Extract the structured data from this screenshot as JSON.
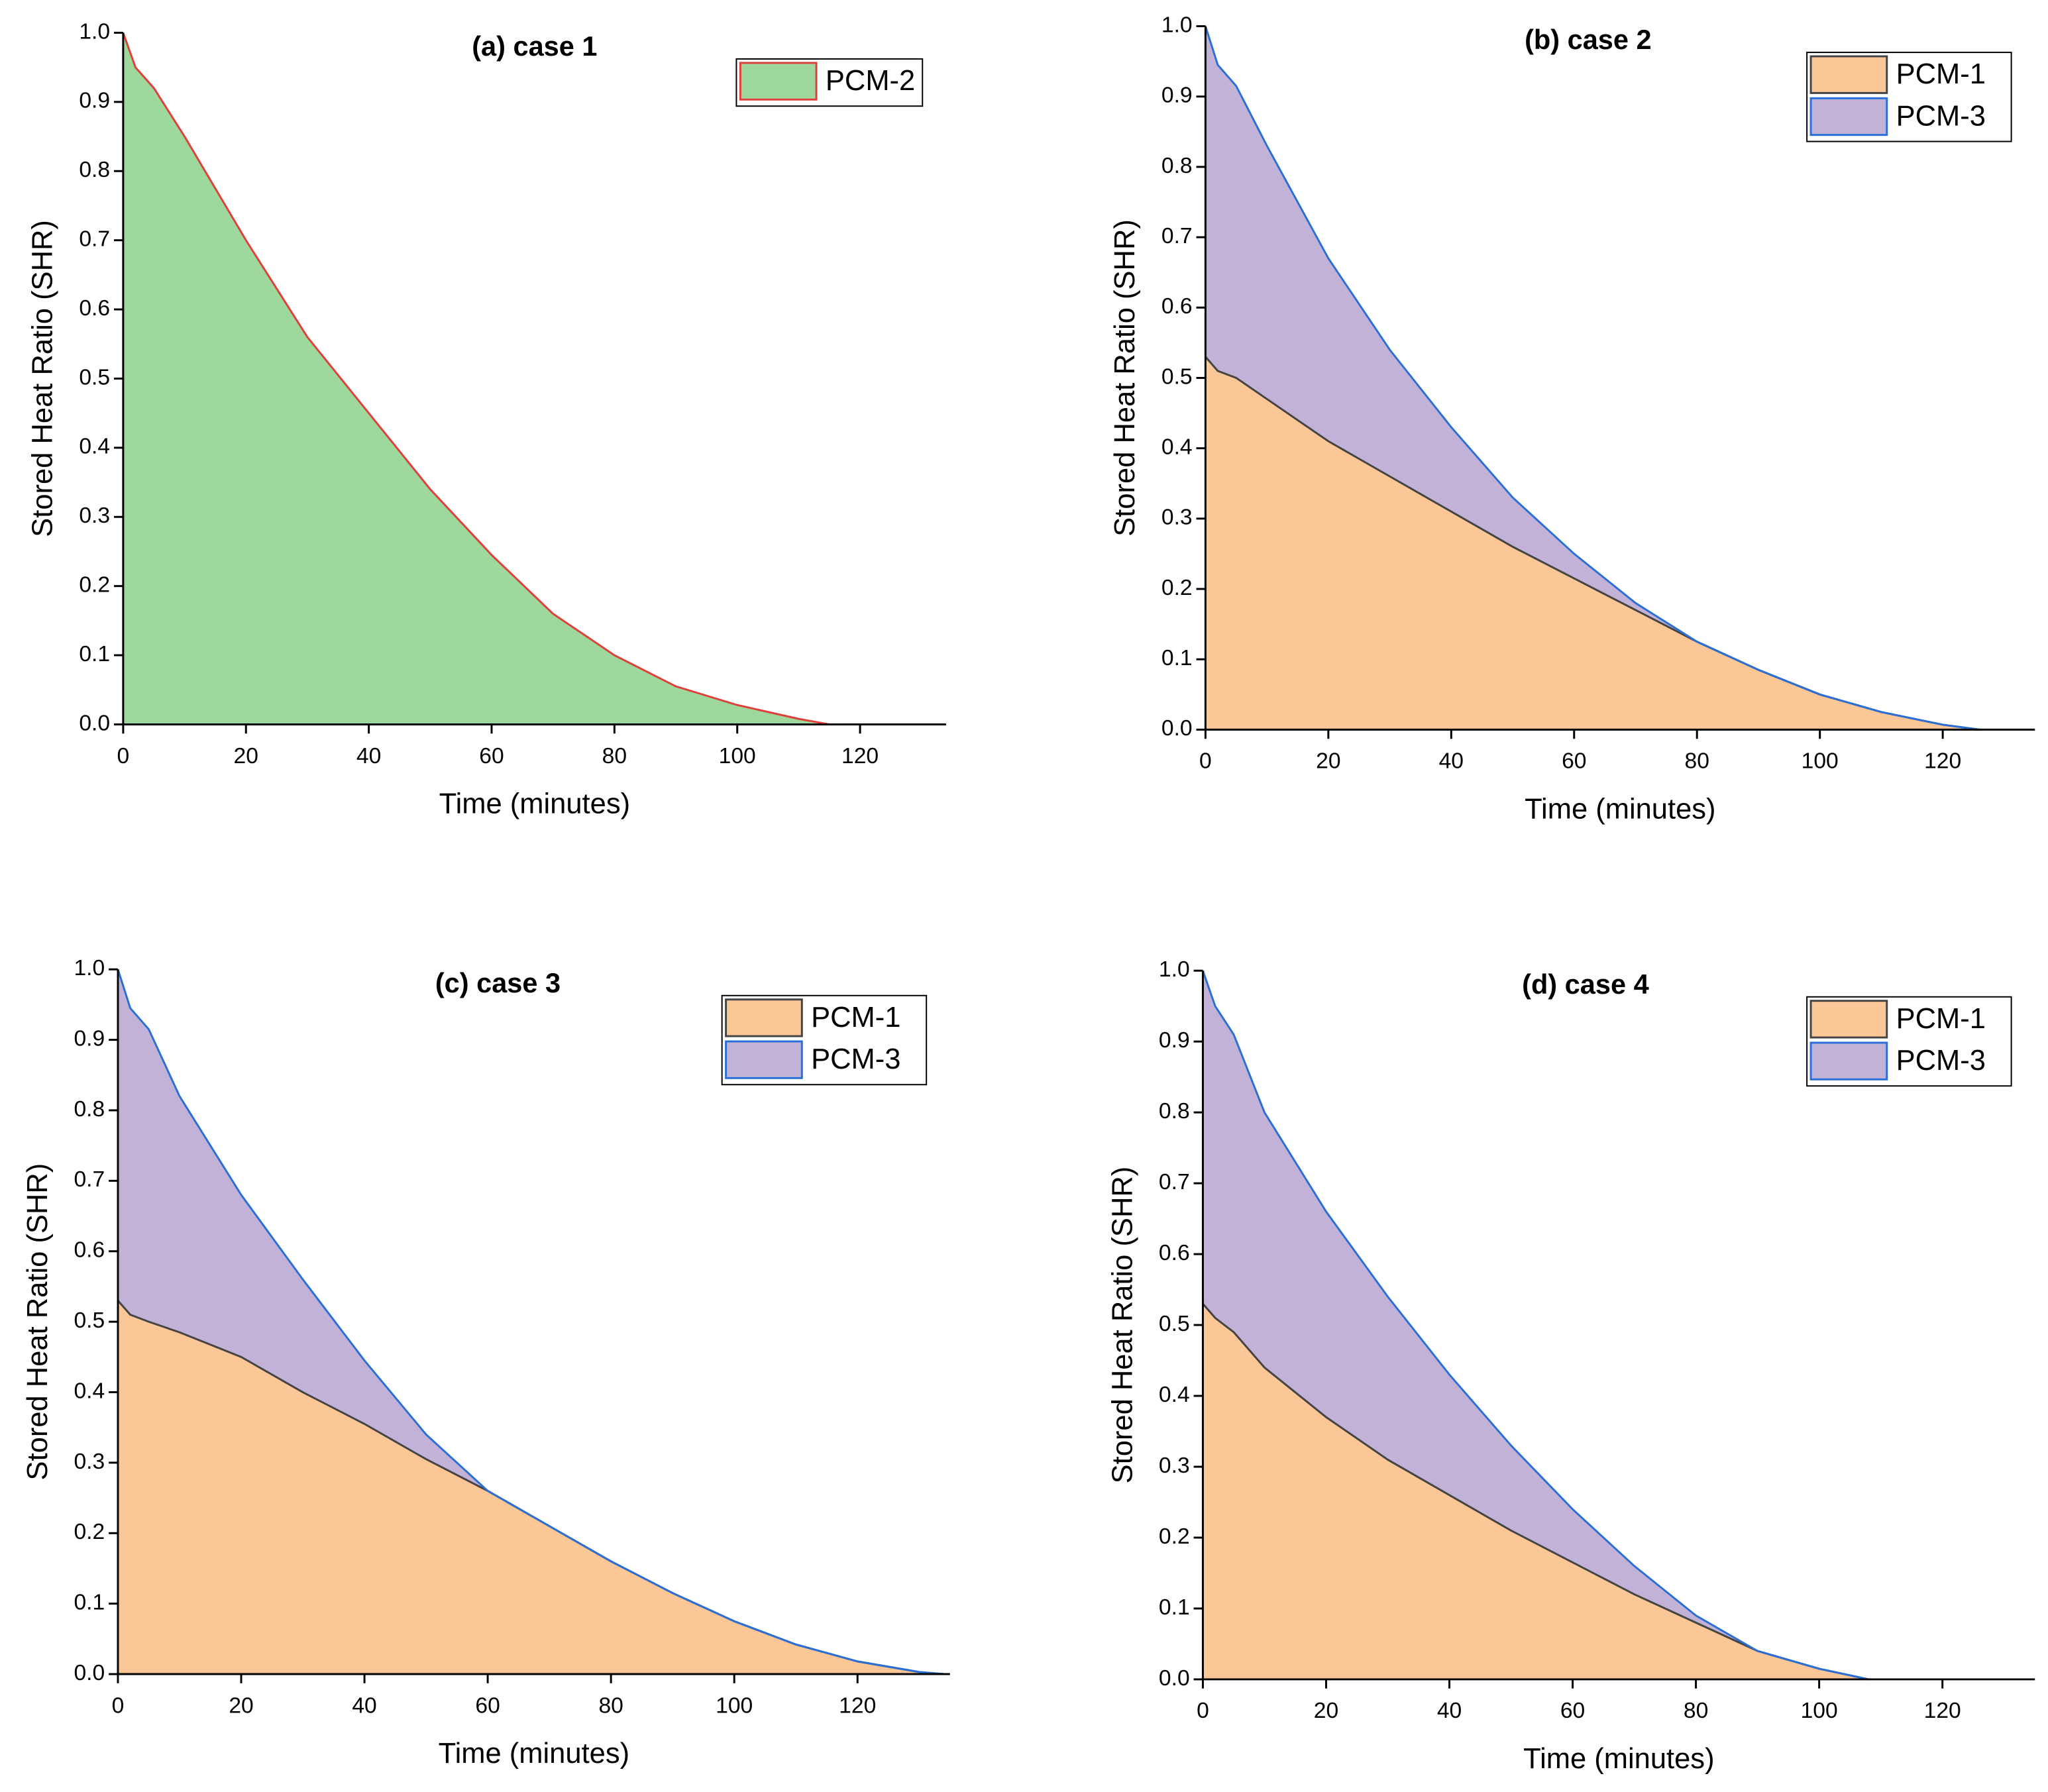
{
  "chart_data": [
    {
      "type": "stacked-area",
      "title": "(a) case 1",
      "x_label": "Time (minutes)",
      "y_label": "Stored Heat Ratio (SHR)",
      "x": [
        0,
        2,
        5,
        10,
        20,
        30,
        40,
        50,
        60,
        70,
        80,
        90,
        100,
        110,
        115
      ],
      "series": [
        {
          "name": "PCM-2",
          "color": "#9fd89c",
          "line_color": "#e0403a",
          "values": [
            1.0,
            0.95,
            0.92,
            0.85,
            0.7,
            0.56,
            0.45,
            0.34,
            0.245,
            0.16,
            0.1,
            0.055,
            0.028,
            0.008,
            0
          ]
        }
      ],
      "xlim": [
        0,
        134
      ],
      "xticks": [
        0,
        20,
        40,
        60,
        80,
        100,
        120
      ],
      "ylim": [
        0,
        1
      ],
      "yticks": [
        {
          "value": 0,
          "label": "0.0"
        },
        0.1,
        0.2,
        0.3,
        0.4,
        0.5,
        0.6,
        0.7,
        0.8,
        0.9,
        {
          "value": 1,
          "label": "1.0"
        }
      ],
      "legend": "upper right"
    },
    {
      "type": "stacked-area",
      "title": "(b) case 2",
      "x_label": "Time (minutes)",
      "y_label": "Stored Heat Ratio (SHR)",
      "x": [
        0,
        2,
        5,
        10,
        20,
        30,
        40,
        50,
        60,
        70,
        80,
        90,
        100,
        110,
        120,
        126
      ],
      "series": [
        {
          "name": "PCM-1",
          "color": "#fcc797",
          "line_color": "#444444",
          "values": [
            0.53,
            0.51,
            0.5,
            0.47,
            0.41,
            0.36,
            0.31,
            0.26,
            0.215,
            0.17,
            0.125,
            0.085,
            0.05,
            0.025,
            0.007,
            0
          ]
        },
        {
          "name": "PCM-3",
          "color": "#c2b2d8",
          "line_color": "#2a6fd8",
          "values": [
            0.47,
            0.435,
            0.415,
            0.36,
            0.26,
            0.18,
            0.12,
            0.07,
            0.035,
            0.01,
            0,
            0,
            0,
            0,
            0,
            0
          ]
        }
      ],
      "xlim": [
        0,
        135
      ],
      "xticks": [
        0,
        20,
        40,
        60,
        80,
        100,
        120
      ],
      "ylim": [
        0,
        1
      ],
      "yticks": [
        {
          "value": 0,
          "label": "0.0"
        },
        0.1,
        0.2,
        0.3,
        0.4,
        0.5,
        0.6,
        0.7,
        0.8,
        0.9,
        {
          "value": 1,
          "label": "1.0"
        }
      ],
      "legend": "upper right"
    },
    {
      "type": "stacked-area",
      "title": "(c) case 3",
      "x_label": "Time (minutes)",
      "y_label": "Stored Heat Ratio (SHR)",
      "x": [
        0,
        2,
        5,
        10,
        20,
        30,
        40,
        50,
        60,
        70,
        80,
        90,
        100,
        110,
        120,
        130,
        134
      ],
      "series": [
        {
          "name": "PCM-1",
          "color": "#fcc797",
          "line_color": "#444444",
          "values": [
            0.53,
            0.51,
            0.5,
            0.485,
            0.45,
            0.4,
            0.355,
            0.305,
            0.26,
            0.21,
            0.16,
            0.115,
            0.075,
            0.042,
            0.018,
            0.003,
            0
          ]
        },
        {
          "name": "PCM-3",
          "color": "#c2b2d8",
          "line_color": "#2a6fd8",
          "values": [
            0.47,
            0.435,
            0.415,
            0.335,
            0.23,
            0.16,
            0.09,
            0.035,
            0,
            0,
            0,
            0,
            0,
            0,
            0,
            0,
            0
          ]
        }
      ],
      "xlim": [
        0,
        135
      ],
      "xticks": [
        0,
        20,
        40,
        60,
        80,
        100,
        120
      ],
      "ylim": [
        0,
        1
      ],
      "yticks": [
        {
          "value": 0,
          "label": "0.0"
        },
        0.1,
        0.2,
        0.3,
        0.4,
        0.5,
        0.6,
        0.7,
        0.8,
        0.9,
        {
          "value": 1,
          "label": "1.0"
        }
      ],
      "legend": "upper right"
    },
    {
      "type": "stacked-area",
      "title": "(d) case 4",
      "x_label": "Time (minutes)",
      "y_label": "Stored Heat Ratio (SHR)",
      "x": [
        0,
        2,
        5,
        10,
        20,
        30,
        40,
        50,
        60,
        70,
        80,
        90,
        100,
        108
      ],
      "series": [
        {
          "name": "PCM-1",
          "color": "#fcc797",
          "line_color": "#444444",
          "values": [
            0.53,
            0.51,
            0.49,
            0.44,
            0.37,
            0.31,
            0.26,
            0.21,
            0.165,
            0.12,
            0.08,
            0.04,
            0.015,
            0
          ]
        },
        {
          "name": "PCM-3",
          "color": "#c2b2d8",
          "line_color": "#2a6fd8",
          "values": [
            0.47,
            0.44,
            0.42,
            0.36,
            0.29,
            0.23,
            0.17,
            0.12,
            0.075,
            0.04,
            0.01,
            0,
            0,
            0
          ]
        }
      ],
      "xlim": [
        0,
        135
      ],
      "xticks": [
        0,
        20,
        40,
        60,
        80,
        100,
        120
      ],
      "ylim": [
        0,
        1
      ],
      "yticks": [
        {
          "value": 0,
          "label": "0.0"
        },
        0.1,
        0.2,
        0.3,
        0.4,
        0.5,
        0.6,
        0.7,
        0.8,
        0.9,
        {
          "value": 1,
          "label": "1.0"
        }
      ],
      "legend": "upper right"
    }
  ]
}
